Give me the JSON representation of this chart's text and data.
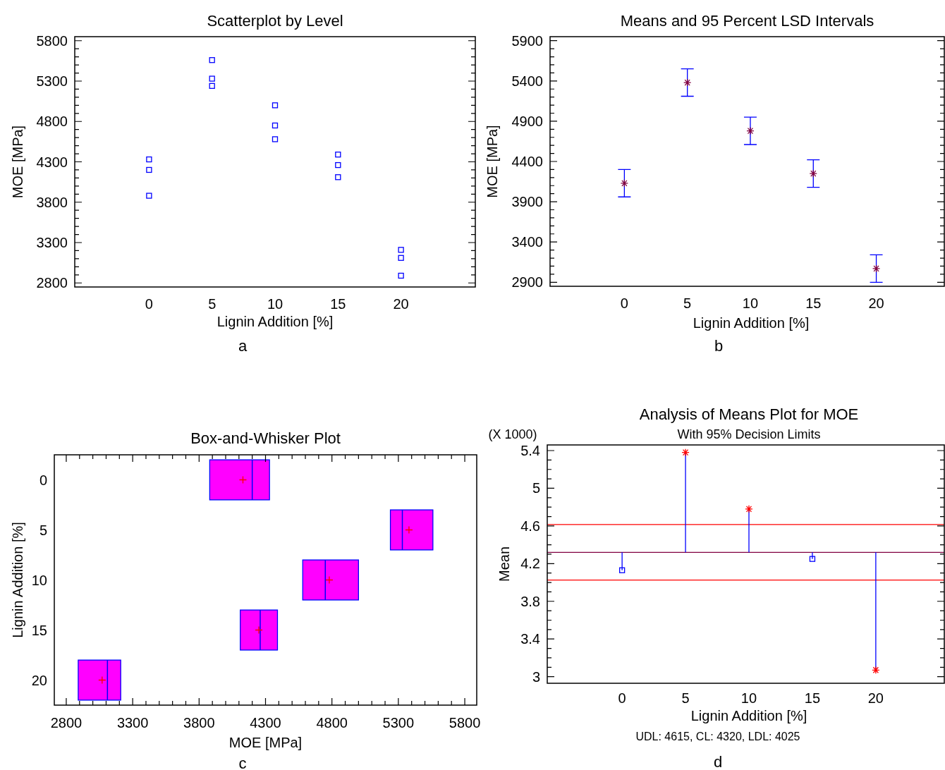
{
  "chart_data": [
    {
      "type": "scatter",
      "title": "Scatterplot by Level",
      "xlabel": "Lignin Addition [%]",
      "ylabel": "MOE [MPa]",
      "annotations": [
        "a"
      ],
      "marker": "square",
      "xlim": [
        -5.9,
        25.9
      ],
      "xticks": [
        0,
        5,
        10,
        15,
        20
      ],
      "ylim": [
        2750,
        5850
      ],
      "yticks": [
        {
          "value": 2800,
          "label": "2800"
        },
        {
          "value": 2900,
          "label": null
        },
        {
          "value": 3000,
          "label": null
        },
        {
          "value": 3100,
          "label": null
        },
        {
          "value": 3200,
          "label": null
        },
        {
          "value": 3300,
          "label": "3300"
        },
        {
          "value": 3400,
          "label": null
        },
        {
          "value": 3500,
          "label": null
        },
        {
          "value": 3600,
          "label": null
        },
        {
          "value": 3700,
          "label": null
        },
        {
          "value": 3800,
          "label": "3800"
        },
        {
          "value": 3900,
          "label": null
        },
        {
          "value": 4000,
          "label": null
        },
        {
          "value": 4100,
          "label": null
        },
        {
          "value": 4200,
          "label": null
        },
        {
          "value": 4300,
          "label": "4300"
        },
        {
          "value": 4400,
          "label": null
        },
        {
          "value": 4500,
          "label": null
        },
        {
          "value": 4600,
          "label": null
        },
        {
          "value": 4700,
          "label": null
        },
        {
          "value": 4800,
          "label": "4800"
        },
        {
          "value": 4900,
          "label": null
        },
        {
          "value": 5000,
          "label": null
        },
        {
          "value": 5100,
          "label": null
        },
        {
          "value": 5200,
          "label": null
        },
        {
          "value": 5300,
          "label": "5300"
        },
        {
          "value": 5400,
          "label": null
        },
        {
          "value": 5500,
          "label": null
        },
        {
          "value": 5600,
          "label": null
        },
        {
          "value": 5700,
          "label": null
        },
        {
          "value": 5800,
          "label": "5800"
        }
      ],
      "series": [
        {
          "color": "#0000ff",
          "x": [
            0,
            0,
            0,
            5,
            5,
            5,
            10,
            10,
            10,
            15,
            15,
            15,
            20,
            20,
            20
          ],
          "values": [
            3880,
            4200,
            4330,
            5240,
            5330,
            5560,
            4580,
            4750,
            5000,
            4110,
            4260,
            4390,
            2890,
            3110,
            3210
          ]
        }
      ]
    },
    {
      "type": "scatter",
      "title": "Means and 95 Percent LSD Intervals",
      "xlabel": "Lignin Addition [%]",
      "ylabel": "MOE [MPa]",
      "annotations": [
        "b"
      ],
      "marker": "cross",
      "xlim": [
        -5.9,
        25.4
      ],
      "xticks": [
        0,
        5,
        10,
        15,
        20
      ],
      "ylim": [
        2850,
        5950
      ],
      "yticks": [
        {
          "value": 2900,
          "label": "2900"
        },
        {
          "value": 3000,
          "label": null
        },
        {
          "value": 3100,
          "label": null
        },
        {
          "value": 3200,
          "label": null
        },
        {
          "value": 3300,
          "label": null
        },
        {
          "value": 3400,
          "label": "3400"
        },
        {
          "value": 3500,
          "label": null
        },
        {
          "value": 3600,
          "label": null
        },
        {
          "value": 3700,
          "label": null
        },
        {
          "value": 3800,
          "label": null
        },
        {
          "value": 3900,
          "label": "3900"
        },
        {
          "value": 4000,
          "label": null
        },
        {
          "value": 4100,
          "label": null
        },
        {
          "value": 4200,
          "label": null
        },
        {
          "value": 4300,
          "label": null
        },
        {
          "value": 4400,
          "label": "4400"
        },
        {
          "value": 4500,
          "label": null
        },
        {
          "value": 4600,
          "label": null
        },
        {
          "value": 4700,
          "label": null
        },
        {
          "value": 4800,
          "label": null
        },
        {
          "value": 4900,
          "label": "4900"
        },
        {
          "value": 5000,
          "label": null
        },
        {
          "value": 5100,
          "label": null
        },
        {
          "value": 5200,
          "label": null
        },
        {
          "value": 5300,
          "label": null
        },
        {
          "value": 5400,
          "label": "5400"
        },
        {
          "value": 5500,
          "label": null
        },
        {
          "value": 5600,
          "label": null
        },
        {
          "value": 5700,
          "label": null
        },
        {
          "value": 5800,
          "label": null
        },
        {
          "value": 5900,
          "label": "5900"
        }
      ],
      "x": [
        0,
        5,
        10,
        15,
        20
      ],
      "series": [
        {
          "color": "#800040",
          "values": [
            4130,
            5380,
            4780,
            4250,
            3070
          ],
          "errors": [
            170,
            170,
            170,
            170,
            170
          ]
        }
      ]
    },
    {
      "type": "box",
      "orientation": "horizontal",
      "title": "Box-and-Whisker Plot",
      "xlabel": "MOE [MPa]",
      "ylabel": "Lignin Addition [%]",
      "annotations": [
        "c"
      ],
      "color": "#ff00ff",
      "categories": [
        "0",
        "5",
        "10",
        "15",
        "20"
      ],
      "xlim": [
        2710,
        5890
      ],
      "xticks": [
        {
          "value": 2800,
          "label": "2800"
        },
        {
          "value": 2900,
          "label": null
        },
        {
          "value": 3000,
          "label": null
        },
        {
          "value": 3100,
          "label": null
        },
        {
          "value": 3200,
          "label": null
        },
        {
          "value": 3300,
          "label": "3300"
        },
        {
          "value": 3400,
          "label": null
        },
        {
          "value": 3500,
          "label": null
        },
        {
          "value": 3600,
          "label": null
        },
        {
          "value": 3700,
          "label": null
        },
        {
          "value": 3800,
          "label": "3800"
        },
        {
          "value": 3900,
          "label": null
        },
        {
          "value": 4000,
          "label": null
        },
        {
          "value": 4100,
          "label": null
        },
        {
          "value": 4200,
          "label": null
        },
        {
          "value": 4300,
          "label": "4300"
        },
        {
          "value": 4400,
          "label": null
        },
        {
          "value": 4500,
          "label": null
        },
        {
          "value": 4600,
          "label": null
        },
        {
          "value": 4700,
          "label": null
        },
        {
          "value": 4800,
          "label": "4800"
        },
        {
          "value": 4900,
          "label": null
        },
        {
          "value": 5000,
          "label": null
        },
        {
          "value": 5100,
          "label": null
        },
        {
          "value": 5200,
          "label": null
        },
        {
          "value": 5300,
          "label": "5300"
        },
        {
          "value": 5400,
          "label": null
        },
        {
          "value": 5500,
          "label": null
        },
        {
          "value": 5600,
          "label": null
        },
        {
          "value": 5700,
          "label": null
        },
        {
          "value": 5800,
          "label": "5800"
        }
      ],
      "boxes": [
        {
          "low": 3880,
          "q1": 3880,
          "median": 4200,
          "q3": 4330,
          "high": 4330,
          "mean": 4130
        },
        {
          "low": 5240,
          "q1": 5240,
          "median": 5330,
          "q3": 5560,
          "high": 5560,
          "mean": 5380
        },
        {
          "low": 4580,
          "q1": 4580,
          "median": 4750,
          "q3": 5000,
          "high": 5000,
          "mean": 4780
        },
        {
          "low": 4110,
          "q1": 4110,
          "median": 4260,
          "q3": 4390,
          "high": 4390,
          "mean": 4250
        },
        {
          "low": 2890,
          "q1": 2890,
          "median": 3110,
          "q3": 3210,
          "high": 3210,
          "mean": 3070
        }
      ]
    },
    {
      "type": "scatter",
      "title": "Analysis of Means Plot for MOE",
      "subtitle": "With 95% Decision Limits",
      "xlabel": "Lignin Addition [%]",
      "ylabel": "Mean",
      "annotations": [
        "(X 1000)",
        "UDL: 4615, CL: 4320, LDL: 4025",
        "d"
      ],
      "x": [
        0,
        5,
        10,
        15,
        20
      ],
      "xlim": [
        -5.9,
        25.4
      ],
      "xticks": [
        0,
        5,
        10,
        15,
        20
      ],
      "ylim": [
        2.93,
        5.46
      ],
      "yticks": [
        {
          "value": 3,
          "label": "3"
        },
        {
          "value": 3.1,
          "label": null
        },
        {
          "value": 3.2,
          "label": null
        },
        {
          "value": 3.3,
          "label": null
        },
        {
          "value": 3.4,
          "label": "3.4"
        },
        {
          "value": 3.5,
          "label": null
        },
        {
          "value": 3.6,
          "label": null
        },
        {
          "value": 3.7,
          "label": null
        },
        {
          "value": 3.8,
          "label": "3.8"
        },
        {
          "value": 3.9,
          "label": null
        },
        {
          "value": 4,
          "label": null
        },
        {
          "value": 4.1,
          "label": null
        },
        {
          "value": 4.2,
          "label": "4.2"
        },
        {
          "value": 4.3,
          "label": null
        },
        {
          "value": 4.4,
          "label": null
        },
        {
          "value": 4.5,
          "label": null
        },
        {
          "value": 4.6,
          "label": "4.6"
        },
        {
          "value": 4.7,
          "label": null
        },
        {
          "value": 4.8,
          "label": null
        },
        {
          "value": 4.9,
          "label": null
        },
        {
          "value": 5,
          "label": "5"
        },
        {
          "value": 5.1,
          "label": null
        },
        {
          "value": 5.2,
          "label": null
        },
        {
          "value": 5.3,
          "label": null
        },
        {
          "value": 5.4,
          "label": "5.4"
        }
      ],
      "ref_lines": [
        {
          "axis": "y",
          "value": 4.615,
          "color": "#ff0000"
        },
        {
          "axis": "y",
          "value": 4.32,
          "color": "#800040"
        },
        {
          "axis": "y",
          "value": 4.025,
          "color": "#ff0000"
        }
      ],
      "series": [
        {
          "color": "#0000ff",
          "marker": "square",
          "values": [
            4.13,
            null,
            null,
            4.25,
            null
          ],
          "errors": [
            [
              4.13,
              4.32
            ],
            null,
            null,
            [
              4.25,
              4.32
            ],
            null
          ]
        },
        {
          "color": "#ff0000",
          "marker": "cross",
          "values": [
            null,
            5.38,
            4.78,
            null,
            3.07
          ],
          "errors": [
            null,
            [
              4.32,
              5.38
            ],
            [
              4.32,
              4.78
            ],
            null,
            [
              3.07,
              4.32
            ]
          ]
        }
      ]
    }
  ]
}
